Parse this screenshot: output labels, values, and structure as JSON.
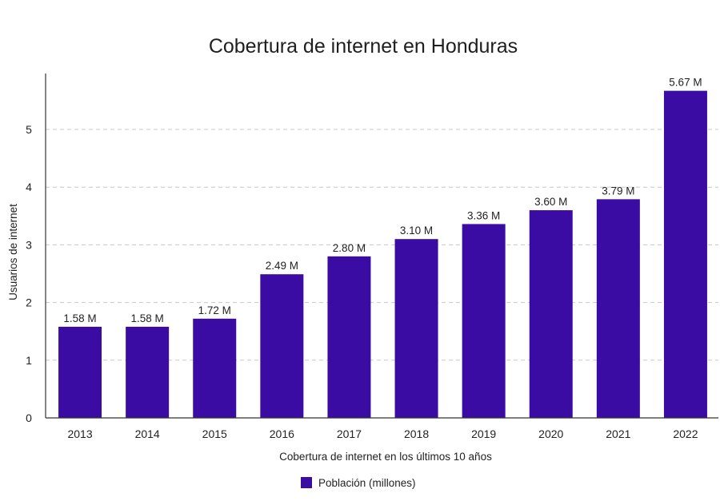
{
  "chart_data": {
    "type": "bar",
    "title": "Cobertura de internet en Honduras",
    "xlabel": "Cobertura de internet en los últimos 10 años",
    "ylabel": "Usuarios de internet",
    "categories": [
      "2013",
      "2014",
      "2015",
      "2016",
      "2017",
      "2018",
      "2019",
      "2020",
      "2021",
      "2022"
    ],
    "series": [
      {
        "name": "Población (millones)",
        "color": "#3a0ca3",
        "values": [
          1.58,
          1.58,
          1.72,
          2.49,
          2.8,
          3.1,
          3.36,
          3.6,
          3.79,
          5.67
        ],
        "labels": [
          "1.58 M",
          "1.58 M",
          "1.72 M",
          "2.49 M",
          "2.80 M",
          "3.10 M",
          "3.36 M",
          "3.60 M",
          "3.79 M",
          "5.67 M"
        ]
      }
    ],
    "yticks": [
      0,
      1,
      2,
      3,
      4,
      5
    ],
    "ylim": [
      0,
      5.95
    ],
    "grid": "horizontal-dashed",
    "legend_position": "bottom-center"
  }
}
